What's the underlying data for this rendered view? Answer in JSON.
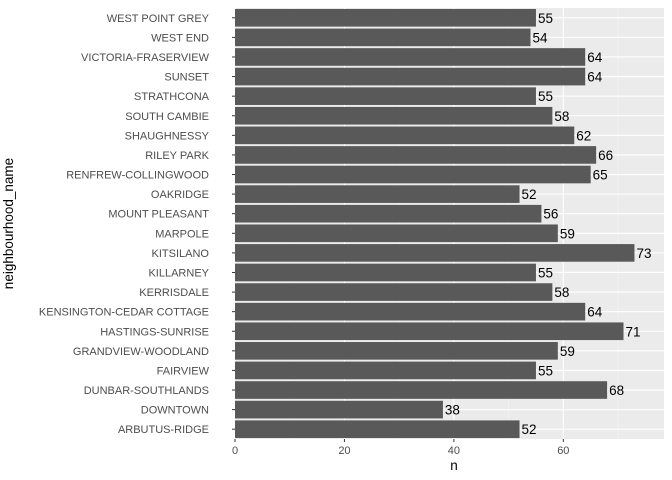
{
  "chart_data": {
    "type": "bar",
    "orientation": "horizontal",
    "categories": [
      "WEST POINT GREY",
      "WEST END",
      "VICTORIA-FRASERVIEW",
      "SUNSET",
      "STRATHCONA",
      "SOUTH CAMBIE",
      "SHAUGHNESSY",
      "RILEY PARK",
      "RENFREW-COLLINGWOOD",
      "OAKRIDGE",
      "MOUNT PLEASANT",
      "MARPOLE",
      "KITSILANO",
      "KILLARNEY",
      "KERRISDALE",
      "KENSINGTON-CEDAR COTTAGE",
      "HASTINGS-SUNRISE",
      "GRANDVIEW-WOODLAND",
      "FAIRVIEW",
      "DUNBAR-SOUTHLANDS",
      "DOWNTOWN",
      "ARBUTUS-RIDGE"
    ],
    "values": [
      55,
      54,
      64,
      64,
      55,
      58,
      62,
      66,
      65,
      52,
      56,
      59,
      73,
      55,
      58,
      64,
      71,
      59,
      55,
      68,
      38,
      52
    ],
    "xlabel": "n",
    "ylabel": "neighbourhood_name",
    "xlim": [
      0,
      78.4
    ],
    "xticks": [
      0,
      20,
      40,
      60
    ],
    "grid": true,
    "colors": {
      "bar": "#595959",
      "panel": "#ebebeb",
      "grid_major": "#ffffff",
      "grid_minor": "#f5f5f5"
    }
  }
}
